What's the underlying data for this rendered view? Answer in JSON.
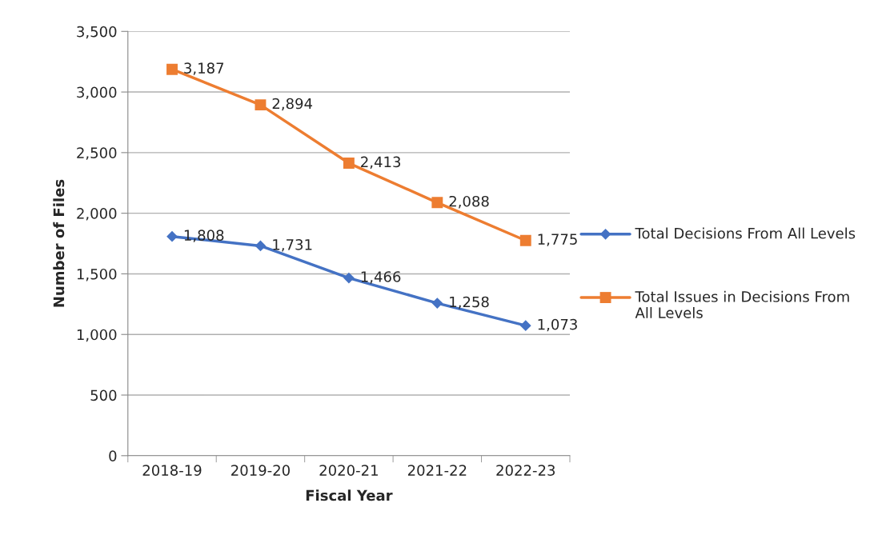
{
  "chart_data": {
    "type": "line",
    "xlabel": "Fiscal Year",
    "ylabel": "Number of Files",
    "categories": [
      "2018-19",
      "2019-20",
      "2020-21",
      "2021-22",
      "2022-23"
    ],
    "series": [
      {
        "name": "Total Decisions From All Levels",
        "color": "#4472c4",
        "marker": "diamond",
        "values": [
          1808,
          1731,
          1466,
          1258,
          1073
        ],
        "value_labels": [
          "1,808",
          "1,731",
          "1,466",
          "1,258",
          "1,073"
        ]
      },
      {
        "name": "Total Issues in Decisions From All Levels",
        "color": "#ed7d31",
        "marker": "square",
        "values": [
          3187,
          2894,
          2413,
          2088,
          1775
        ],
        "value_labels": [
          "3,187",
          "2,894",
          "2,413",
          "2,088",
          "1,775"
        ]
      }
    ],
    "ylim": [
      0,
      3500
    ],
    "yticks": [
      {
        "value": 0,
        "label": "0"
      },
      {
        "value": 500,
        "label": "500"
      },
      {
        "value": 1000,
        "label": "1,000"
      },
      {
        "value": 1500,
        "label": "1,500"
      },
      {
        "value": 2000,
        "label": "2,000"
      },
      {
        "value": 2500,
        "label": "2,500"
      },
      {
        "value": 3000,
        "label": "3,000"
      },
      {
        "value": 3500,
        "label": "3,500"
      }
    ],
    "grid": "y",
    "legend": "right",
    "line_style": "solid"
  }
}
